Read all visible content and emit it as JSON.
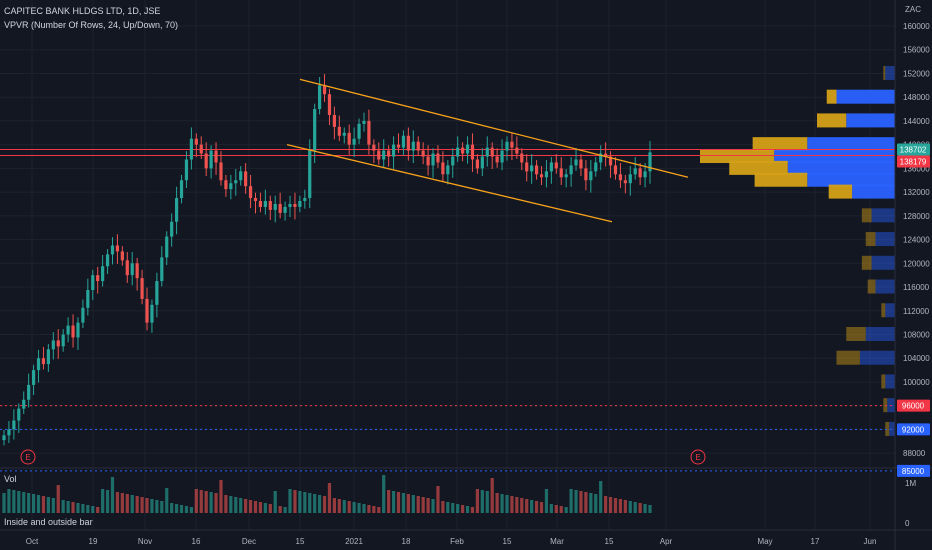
{
  "header": {
    "title": "CAPITEC BANK HLDGS LTD, 1D, JSE",
    "indicator": "VPVR (Number Of Rows, 24, Up/Down, 70)"
  },
  "volume_label": "Vol",
  "footer_note": "Inside and outside bar",
  "currency": "ZAC",
  "colors": {
    "up": "#26a69a",
    "down": "#ef5350",
    "channel": "#f7a21b",
    "hline": "#f23645",
    "dotted_red": "#f23645",
    "dotted_blue": "#2962ff",
    "vp_up": "#2962ff",
    "vp_down": "#d4a017",
    "bg": "#131722"
  },
  "chart_data": {
    "type": "candlestick",
    "title": "CAPITEC BANK HLDGS LTD, 1D, JSE",
    "x_ticks": [
      "Oct",
      "19",
      "Nov",
      "16",
      "Dec",
      "15",
      "2021",
      "18",
      "Feb",
      "15",
      "Mar",
      "15",
      "Apr",
      "May",
      "17",
      "Jun"
    ],
    "y_ticks": [
      88000,
      92000,
      96000,
      100000,
      104000,
      108000,
      112000,
      116000,
      120000,
      124000,
      128000,
      132000,
      136000,
      140000,
      144000,
      148000,
      152000,
      156000,
      160000
    ],
    "ylim": [
      84000,
      161000
    ],
    "price_labels": [
      {
        "text": "138702",
        "value": 138702,
        "color": "#26a69a"
      },
      {
        "text": "138179",
        "value": 138179,
        "color": "#f23645"
      },
      {
        "text": "96000",
        "value": 96000,
        "color": "#f23645"
      },
      {
        "text": "92000",
        "value": 92000,
        "color": "#2962ff"
      },
      {
        "text": "85000",
        "value": 85000,
        "color": "#2962ff"
      }
    ],
    "volume_ticks": [
      "1M",
      "0"
    ],
    "event_markers": [
      "E",
      "E"
    ],
    "close_prices": [
      91000,
      92000,
      93500,
      95500,
      97000,
      99500,
      102000,
      104000,
      103000,
      105500,
      107000,
      106000,
      108000,
      109500,
      107500,
      110000,
      112500,
      115500,
      118000,
      117000,
      119500,
      121500,
      123000,
      122000,
      120500,
      118000,
      120000,
      117500,
      114000,
      110000,
      113000,
      117000,
      121000,
      124500,
      127000,
      131000,
      134000,
      137500,
      141000,
      140000,
      138500,
      136000,
      139000,
      137000,
      134000,
      132500,
      133500,
      134000,
      135500,
      133000,
      131000,
      130500,
      129500,
      130500,
      129000,
      130000,
      128500,
      129500,
      130000,
      129500,
      130500,
      131000,
      139000,
      146000,
      150000,
      148500,
      145000,
      143000,
      141500,
      142000,
      140000,
      141000,
      143500,
      144000,
      140000,
      139000,
      137500,
      139000,
      138000,
      140000,
      139500,
      141500,
      139000,
      140500,
      139000,
      138000,
      136500,
      138500,
      137000,
      135000,
      136500,
      138000,
      139500,
      138500,
      140000,
      137500,
      136000,
      138000,
      139500,
      138000,
      137000,
      139000,
      140500,
      139500,
      138500,
      137000,
      135500,
      136500,
      135000,
      134500,
      135500,
      137000,
      136000,
      134500,
      135000,
      136500,
      137500,
      136000,
      134000,
      135500,
      137000,
      138500,
      138000,
      136500,
      135000,
      134000,
      133500,
      135000,
      136000,
      134500,
      135500,
      138700
    ],
    "channel_upper": {
      "from": [
        "Dec 17",
        151000
      ],
      "to": [
        "Apr 1",
        134500
      ]
    },
    "channel_lower": {
      "from": [
        "Dec 15",
        140000
      ],
      "to": [
        "Mar 30",
        127000
      ]
    },
    "horizontal_lines": [
      138179,
      96000,
      92000,
      85000
    ],
    "volume_profile": [
      {
        "price": 152000,
        "up": 0.05,
        "down": 0.01
      },
      {
        "price": 148000,
        "up": 0.3,
        "down": 0.05
      },
      {
        "price": 144000,
        "up": 0.25,
        "down": 0.15
      },
      {
        "price": 140000,
        "up": 0.45,
        "down": 0.28
      },
      {
        "price": 138000,
        "up": 0.62,
        "down": 0.38
      },
      {
        "price": 136000,
        "up": 0.55,
        "down": 0.3
      },
      {
        "price": 134000,
        "up": 0.45,
        "down": 0.27
      },
      {
        "price": 132000,
        "up": 0.22,
        "down": 0.12
      },
      {
        "price": 128000,
        "up": 0.12,
        "down": 0.05
      },
      {
        "price": 124000,
        "up": 0.1,
        "down": 0.05
      },
      {
        "price": 120000,
        "up": 0.12,
        "down": 0.05
      },
      {
        "price": 116000,
        "up": 0.1,
        "down": 0.04
      },
      {
        "price": 112000,
        "up": 0.05,
        "down": 0.02
      },
      {
        "price": 108000,
        "up": 0.15,
        "down": 0.1
      },
      {
        "price": 104000,
        "up": 0.18,
        "down": 0.12
      },
      {
        "price": 100000,
        "up": 0.05,
        "down": 0.02
      },
      {
        "price": 96000,
        "up": 0.04,
        "down": 0.02
      },
      {
        "price": 92000,
        "up": 0.03,
        "down": 0.02
      }
    ]
  }
}
